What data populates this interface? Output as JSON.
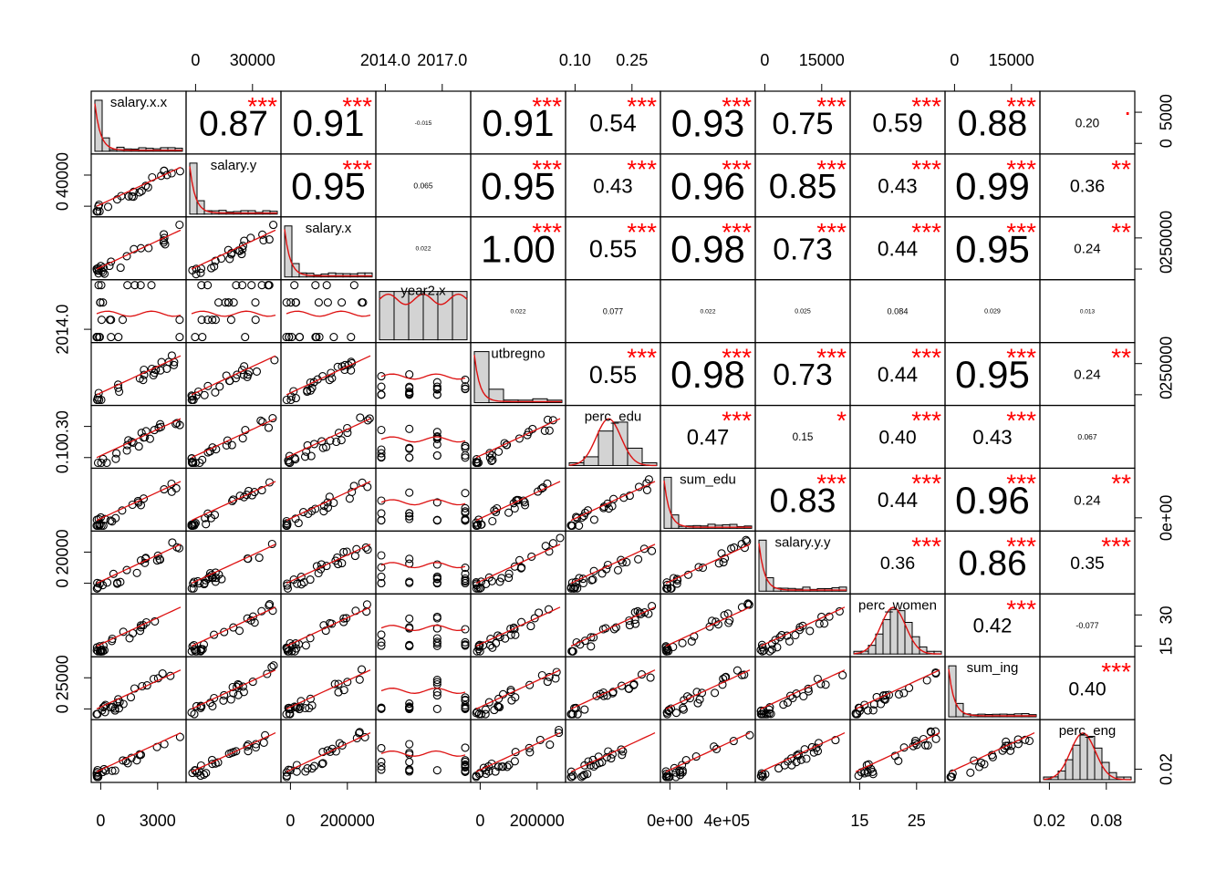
{
  "chart_data": {
    "type": "scatter-matrix",
    "variables": [
      "salary.x.x",
      "salary.y",
      "salary.x",
      "year2.x",
      "utbregno",
      "perc_edu",
      "sum_edu",
      "salary.y.y",
      "perc_women",
      "sum_ing",
      "perc_eng"
    ],
    "correlations": [
      {
        "row": 0,
        "col": 1,
        "value": "0.87",
        "stars": "***"
      },
      {
        "row": 0,
        "col": 2,
        "value": "0.91",
        "stars": "***"
      },
      {
        "row": 0,
        "col": 3,
        "value": "-0.015",
        "stars": ""
      },
      {
        "row": 0,
        "col": 4,
        "value": "0.91",
        "stars": "***"
      },
      {
        "row": 0,
        "col": 5,
        "value": "0.54",
        "stars": "***"
      },
      {
        "row": 0,
        "col": 6,
        "value": "0.93",
        "stars": "***"
      },
      {
        "row": 0,
        "col": 7,
        "value": "0.75",
        "stars": "***"
      },
      {
        "row": 0,
        "col": 8,
        "value": "0.59",
        "stars": "***"
      },
      {
        "row": 0,
        "col": 9,
        "value": "0.88",
        "stars": "***"
      },
      {
        "row": 0,
        "col": 10,
        "value": "0.20",
        "stars": "."
      },
      {
        "row": 1,
        "col": 2,
        "value": "0.95",
        "stars": "***"
      },
      {
        "row": 1,
        "col": 3,
        "value": "0.065",
        "stars": ""
      },
      {
        "row": 1,
        "col": 4,
        "value": "0.95",
        "stars": "***"
      },
      {
        "row": 1,
        "col": 5,
        "value": "0.43",
        "stars": "***"
      },
      {
        "row": 1,
        "col": 6,
        "value": "0.96",
        "stars": "***"
      },
      {
        "row": 1,
        "col": 7,
        "value": "0.85",
        "stars": "***"
      },
      {
        "row": 1,
        "col": 8,
        "value": "0.43",
        "stars": "***"
      },
      {
        "row": 1,
        "col": 9,
        "value": "0.99",
        "stars": "***"
      },
      {
        "row": 1,
        "col": 10,
        "value": "0.36",
        "stars": "**"
      },
      {
        "row": 2,
        "col": 3,
        "value": "0.022",
        "stars": ""
      },
      {
        "row": 2,
        "col": 4,
        "value": "1.00",
        "stars": "***"
      },
      {
        "row": 2,
        "col": 5,
        "value": "0.55",
        "stars": "***"
      },
      {
        "row": 2,
        "col": 6,
        "value": "0.98",
        "stars": "***"
      },
      {
        "row": 2,
        "col": 7,
        "value": "0.73",
        "stars": "***"
      },
      {
        "row": 2,
        "col": 8,
        "value": "0.44",
        "stars": "***"
      },
      {
        "row": 2,
        "col": 9,
        "value": "0.95",
        "stars": "***"
      },
      {
        "row": 2,
        "col": 10,
        "value": "0.24",
        "stars": "**"
      },
      {
        "row": 3,
        "col": 4,
        "value": "0.022",
        "stars": ""
      },
      {
        "row": 3,
        "col": 5,
        "value": "0.077",
        "stars": ""
      },
      {
        "row": 3,
        "col": 6,
        "value": "0.022",
        "stars": ""
      },
      {
        "row": 3,
        "col": 7,
        "value": "0.025",
        "stars": ""
      },
      {
        "row": 3,
        "col": 8,
        "value": "0.084",
        "stars": ""
      },
      {
        "row": 3,
        "col": 9,
        "value": "0.029",
        "stars": ""
      },
      {
        "row": 3,
        "col": 10,
        "value": "0.013",
        "stars": ""
      },
      {
        "row": 4,
        "col": 5,
        "value": "0.55",
        "stars": "***"
      },
      {
        "row": 4,
        "col": 6,
        "value": "0.98",
        "stars": "***"
      },
      {
        "row": 4,
        "col": 7,
        "value": "0.73",
        "stars": "***"
      },
      {
        "row": 4,
        "col": 8,
        "value": "0.44",
        "stars": "***"
      },
      {
        "row": 4,
        "col": 9,
        "value": "0.95",
        "stars": "***"
      },
      {
        "row": 4,
        "col": 10,
        "value": "0.24",
        "stars": "**"
      },
      {
        "row": 5,
        "col": 6,
        "value": "0.47",
        "stars": "***"
      },
      {
        "row": 5,
        "col": 7,
        "value": "0.15",
        "stars": "*"
      },
      {
        "row": 5,
        "col": 8,
        "value": "0.40",
        "stars": "***"
      },
      {
        "row": 5,
        "col": 9,
        "value": "0.43",
        "stars": "***"
      },
      {
        "row": 5,
        "col": 10,
        "value": "0.067",
        "stars": ""
      },
      {
        "row": 6,
        "col": 7,
        "value": "0.83",
        "stars": "***"
      },
      {
        "row": 6,
        "col": 8,
        "value": "0.44",
        "stars": "***"
      },
      {
        "row": 6,
        "col": 9,
        "value": "0.96",
        "stars": "***"
      },
      {
        "row": 6,
        "col": 10,
        "value": "0.24",
        "stars": "**"
      },
      {
        "row": 7,
        "col": 8,
        "value": "0.36",
        "stars": "***"
      },
      {
        "row": 7,
        "col": 9,
        "value": "0.86",
        "stars": "***"
      },
      {
        "row": 7,
        "col": 10,
        "value": "0.35",
        "stars": "***"
      },
      {
        "row": 8,
        "col": 9,
        "value": "0.42",
        "stars": "***"
      },
      {
        "row": 8,
        "col": 10,
        "value": "-0.077",
        "stars": ""
      },
      {
        "row": 9,
        "col": 10,
        "value": "0.40",
        "stars": "***"
      }
    ],
    "ticks": {
      "top": [
        {
          "col": 1,
          "labels": [
            "0",
            "30000"
          ]
        },
        {
          "col": 3,
          "labels": [
            "2014.0",
            "2017.0"
          ]
        },
        {
          "col": 5,
          "labels": [
            "0.10",
            "0.25"
          ]
        },
        {
          "col": 7,
          "labels": [
            "0",
            "15000"
          ]
        },
        {
          "col": 9,
          "labels": [
            "0",
            "15000"
          ]
        }
      ],
      "bottom": [
        {
          "col": 0,
          "labels": [
            "0",
            "3000"
          ]
        },
        {
          "col": 2,
          "labels": [
            "0",
            "200000"
          ]
        },
        {
          "col": 4,
          "labels": [
            "0",
            "200000"
          ]
        },
        {
          "col": 6,
          "labels": [
            "0e+00",
            "4e+05"
          ]
        },
        {
          "col": 8,
          "labels": [
            "15",
            "25"
          ]
        },
        {
          "col": 10,
          "labels": [
            "0.02",
            "0.08"
          ]
        }
      ],
      "left": [
        {
          "row": 1,
          "labels": [
            "0",
            "40000"
          ]
        },
        {
          "row": 3,
          "labels": [
            "2014.0"
          ]
        },
        {
          "row": 5,
          "labels": [
            "0.10",
            "0.30"
          ]
        },
        {
          "row": 7,
          "labels": [
            "0",
            "20000"
          ]
        },
        {
          "row": 9,
          "labels": [
            "0",
            "25000"
          ]
        }
      ],
      "right": [
        {
          "row": 0,
          "labels": [
            "0",
            "5000"
          ]
        },
        {
          "row": 2,
          "labels": [
            "0",
            "250000"
          ]
        },
        {
          "row": 4,
          "labels": [
            "0",
            "250000"
          ]
        },
        {
          "row": 6,
          "labels": [
            "0e+00"
          ]
        },
        {
          "row": 8,
          "labels": [
            "15",
            "30"
          ]
        },
        {
          "row": 10,
          "labels": [
            "0.02"
          ]
        }
      ]
    },
    "colors": {
      "points": "#000000",
      "smooth": "#dd1111",
      "stars": "#ff0000",
      "hist_fill": "#d3d3d3",
      "frame": "#000000"
    },
    "grid": false,
    "legend": "none"
  }
}
